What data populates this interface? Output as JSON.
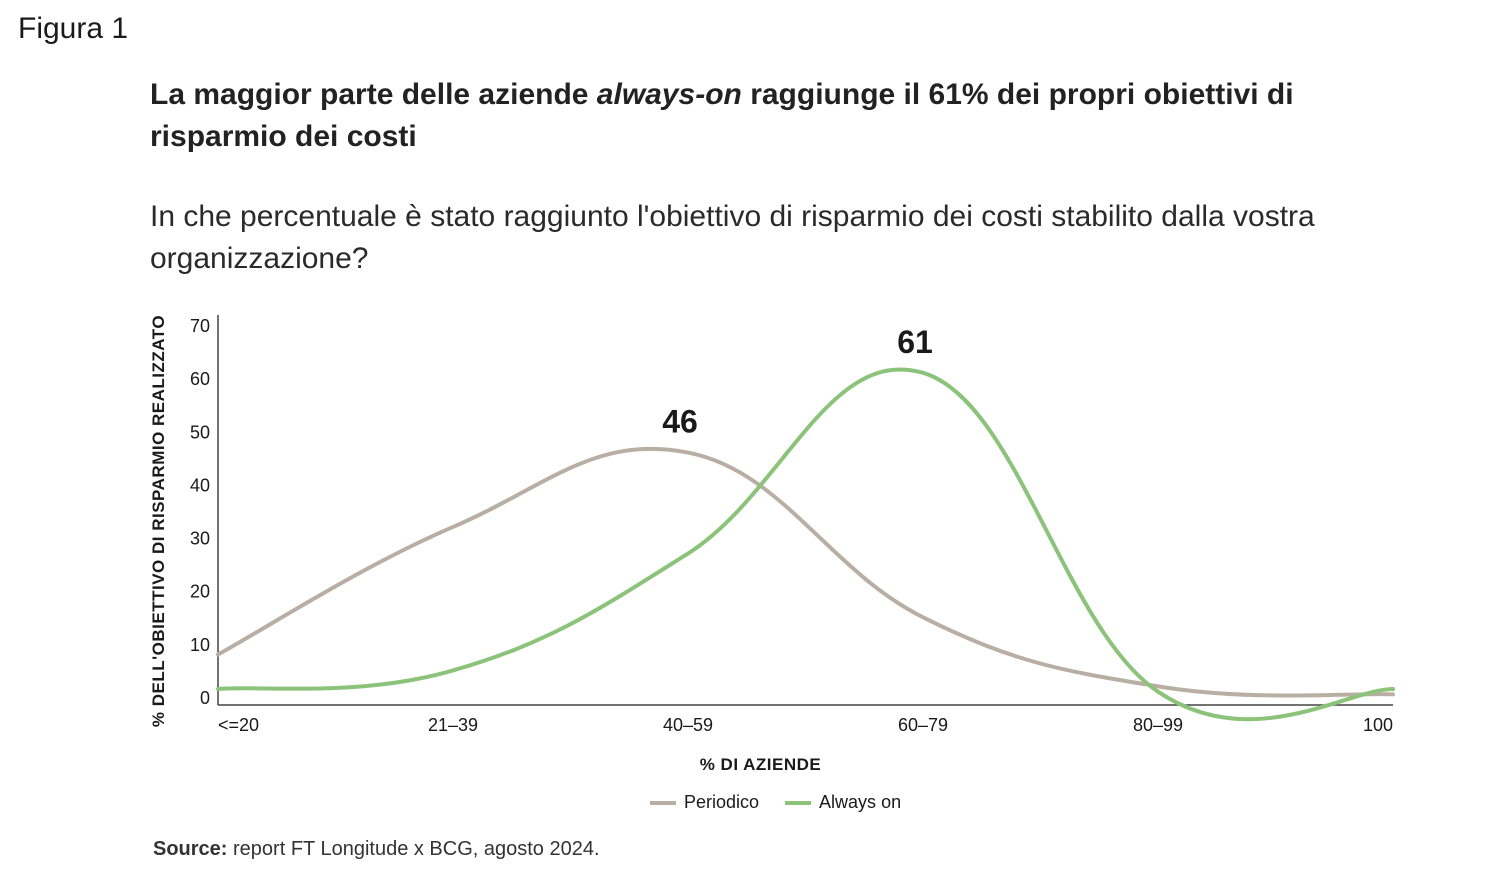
{
  "figure_label": "Figura 1",
  "title": {
    "part1": "La maggior parte delle aziende ",
    "part_italic": "always-on",
    "part2": " raggiunge il 61% dei propri obiettivi di risparmio dei costi"
  },
  "subtitle": "In che percentuale è stato raggiunto l'obiettivo di risparmio dei costi stabilito dalla vostra organizzazione?",
  "source": {
    "label": "Source:",
    "text": " report FT Longitude x BCG, agosto 2024."
  },
  "chart_data": {
    "type": "line",
    "categories": [
      "<=20",
      "21–39",
      "40–59",
      "60–79",
      "80–99",
      "100"
    ],
    "xlabel": "% DI AZIENDE",
    "ylabel": "% DELL'OBIETTIVO DI RISPARMIO REALIZZATO",
    "ylim": [
      0,
      70
    ],
    "yticks": [
      0,
      10,
      20,
      30,
      40,
      50,
      60,
      70
    ],
    "grid": false,
    "legend_position": "bottom",
    "series": [
      {
        "name": "Periodico",
        "values": [
          8,
          32,
          46,
          15,
          2,
          0.5
        ],
        "color": "#b9aea3"
      },
      {
        "name": "Always on",
        "values": [
          1.5,
          5,
          27,
          61,
          1,
          1.5
        ],
        "color": "#8cc37a"
      }
    ],
    "annotations": [
      {
        "series": "Periodico",
        "category": "40–59",
        "text": "46"
      },
      {
        "series": "Always on",
        "category": "60–79",
        "text": "61"
      }
    ]
  }
}
